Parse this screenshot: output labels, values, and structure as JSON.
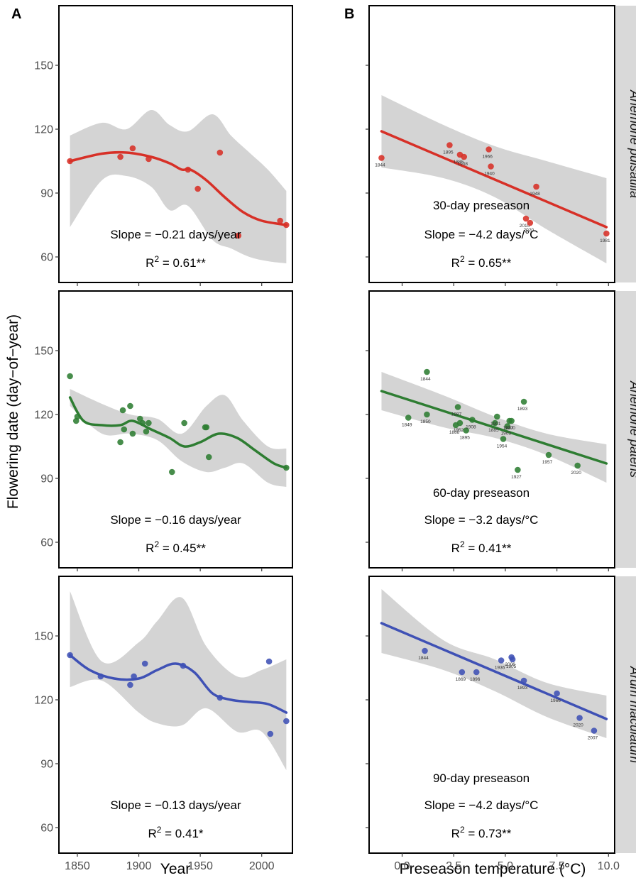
{
  "figure": {
    "panel_letters": [
      "A",
      "B"
    ],
    "y_title": "Flowering date (day−of−year)",
    "x_title_left": "Year",
    "x_title_right": "Preseason temperature (°C)",
    "strips": [
      "Anemone pulsatilla",
      "Anemone patens",
      "Arum maculatum"
    ]
  },
  "chart_data": [
    {
      "type": "scatter",
      "panel": "A",
      "row": 0,
      "species": "Anemone pulsatilla",
      "xlabel": "Year",
      "ylabel": "Flowering date (day−of−year)",
      "xlim": [
        1835,
        2025
      ],
      "ylim": [
        48,
        178
      ],
      "xticks": [
        1850,
        1900,
        1950,
        2000
      ],
      "yticks": [
        60,
        90,
        120,
        150
      ],
      "color": "#d73027",
      "points": [
        [
          1844,
          105
        ],
        [
          1885,
          107
        ],
        [
          1895,
          111
        ],
        [
          1908,
          106
        ],
        [
          1940,
          101
        ],
        [
          1948,
          92
        ],
        [
          1966,
          109
        ],
        [
          1981,
          70
        ],
        [
          2015,
          77
        ],
        [
          2020,
          75
        ]
      ],
      "trend": [
        [
          1844,
          105
        ],
        [
          1870,
          108.5
        ],
        [
          1890,
          109
        ],
        [
          1910,
          107
        ],
        [
          1925,
          104
        ],
        [
          1935,
          101
        ],
        [
          1942,
          101
        ],
        [
          1955,
          96
        ],
        [
          1970,
          88
        ],
        [
          1985,
          81
        ],
        [
          2000,
          77
        ],
        [
          2020,
          75
        ]
      ],
      "band_upper": [
        [
          1844,
          117
        ],
        [
          1870,
          123
        ],
        [
          1890,
          120
        ],
        [
          1910,
          129
        ],
        [
          1925,
          122
        ],
        [
          1940,
          119
        ],
        [
          1960,
          127
        ],
        [
          1975,
          117
        ],
        [
          1990,
          109
        ],
        [
          2005,
          101
        ],
        [
          2020,
          91
        ]
      ],
      "band_lower": [
        [
          1844,
          74
        ],
        [
          1870,
          96
        ],
        [
          1890,
          98
        ],
        [
          1910,
          93
        ],
        [
          1925,
          82
        ],
        [
          1940,
          84
        ],
        [
          1960,
          68
        ],
        [
          1975,
          64
        ],
        [
          1990,
          60
        ],
        [
          2005,
          58
        ],
        [
          2020,
          57
        ]
      ],
      "annotations": [
        "Slope = −0.21 days/year"
      ],
      "r2": "0.61**"
    },
    {
      "type": "scatter",
      "panel": "B",
      "row": 0,
      "species": "Anemone pulsatilla",
      "xlabel": "Preseason temperature (°C)",
      "ylabel": "",
      "xlim": [
        -1.6,
        10.3
      ],
      "ylim": [
        48,
        178
      ],
      "xticks": [
        0.0,
        2.5,
        5.0,
        7.5,
        10.0
      ],
      "yticks": [
        60,
        90,
        120,
        150
      ],
      "color": "#d73027",
      "points": [
        [
          -1.0,
          106.5,
          "1844"
        ],
        [
          2.3,
          112.5,
          "1895"
        ],
        [
          2.8,
          108,
          "1885"
        ],
        [
          3.0,
          107,
          "1908"
        ],
        [
          4.2,
          110.5,
          "1966"
        ],
        [
          4.3,
          102.5,
          "1940"
        ],
        [
          6.5,
          93,
          "1948"
        ],
        [
          6.0,
          78,
          "2015"
        ],
        [
          6.2,
          76,
          "2020"
        ],
        [
          9.9,
          71,
          "1981"
        ]
      ],
      "trend": [
        [
          -1.0,
          119
        ],
        [
          9.9,
          74
        ]
      ],
      "band_upper": [
        [
          -1.0,
          136
        ],
        [
          2.0,
          122
        ],
        [
          4.5,
          112
        ],
        [
          7.0,
          105
        ],
        [
          9.9,
          97
        ]
      ],
      "band_lower": [
        [
          -1.0,
          102
        ],
        [
          2.0,
          97
        ],
        [
          4.5,
          88
        ],
        [
          7.0,
          73
        ],
        [
          9.9,
          57
        ]
      ],
      "annotations": [
        "30-day preseason",
        "Slope = −4.2 days/°C"
      ],
      "r2": "0.65**"
    },
    {
      "type": "scatter",
      "panel": "A",
      "row": 1,
      "species": "Anemone patens",
      "xlabel": "Year",
      "ylabel": "Flowering date (day−of−year)",
      "xlim": [
        1835,
        2025
      ],
      "ylim": [
        48,
        178
      ],
      "xticks": [
        1850,
        1900,
        1950,
        2000
      ],
      "yticks": [
        60,
        90,
        120,
        150
      ],
      "color": "#2e7d32",
      "points": [
        [
          1844,
          138
        ],
        [
          1849,
          117
        ],
        [
          1850,
          119
        ],
        [
          1885,
          107
        ],
        [
          1887,
          122
        ],
        [
          1888,
          113
        ],
        [
          1893,
          124
        ],
        [
          1895,
          111
        ],
        [
          1901,
          118
        ],
        [
          1903,
          116
        ],
        [
          1906,
          112
        ],
        [
          1908,
          116
        ],
        [
          1927,
          93
        ],
        [
          1937,
          116
        ],
        [
          1954,
          114
        ],
        [
          1955,
          114
        ],
        [
          1957,
          100
        ],
        [
          2020,
          95
        ]
      ],
      "trend": [
        [
          1844,
          128
        ],
        [
          1855,
          117
        ],
        [
          1870,
          115
        ],
        [
          1885,
          115
        ],
        [
          1895,
          117
        ],
        [
          1910,
          113
        ],
        [
          1925,
          109
        ],
        [
          1937,
          105
        ],
        [
          1950,
          107
        ],
        [
          1965,
          111
        ],
        [
          1980,
          109
        ],
        [
          1995,
          103
        ],
        [
          2010,
          97
        ],
        [
          2020,
          95
        ]
      ],
      "band_upper": [
        [
          1844,
          132
        ],
        [
          1870,
          125
        ],
        [
          1893,
          120
        ],
        [
          1915,
          118
        ],
        [
          1935,
          111
        ],
        [
          1955,
          124
        ],
        [
          1970,
          129
        ],
        [
          1985,
          117
        ],
        [
          2005,
          105
        ],
        [
          2020,
          104
        ]
      ],
      "band_lower": [
        [
          1844,
          124
        ],
        [
          1870,
          111
        ],
        [
          1893,
          111
        ],
        [
          1915,
          108
        ],
        [
          1935,
          98
        ],
        [
          1955,
          93
        ],
        [
          1970,
          95
        ],
        [
          1985,
          97
        ],
        [
          2005,
          88
        ],
        [
          2020,
          86
        ]
      ],
      "annotations": [
        "Slope = −0.16 days/year"
      ],
      "r2": "0.45**"
    },
    {
      "type": "scatter",
      "panel": "B",
      "row": 1,
      "species": "Anemone patens",
      "xlabel": "Preseason temperature (°C)",
      "ylabel": "",
      "xlim": [
        -1.6,
        10.3
      ],
      "ylim": [
        48,
        178
      ],
      "xticks": [
        0.0,
        2.5,
        5.0,
        7.5,
        10.0
      ],
      "yticks": [
        60,
        90,
        120,
        150
      ],
      "color": "#2e7d32",
      "points": [
        [
          1.2,
          140,
          "1844"
        ],
        [
          0.3,
          118.5,
          "1849"
        ],
        [
          1.2,
          120,
          "1850"
        ],
        [
          2.6,
          115,
          "1888"
        ],
        [
          2.7,
          123.5,
          "1887"
        ],
        [
          2.8,
          116,
          "1952"
        ],
        [
          3.1,
          112.5,
          "1895"
        ],
        [
          3.4,
          117.5,
          "1908"
        ],
        [
          4.5,
          116,
          "1885"
        ],
        [
          4.6,
          119,
          "1901"
        ],
        [
          4.9,
          108.5,
          "1954"
        ],
        [
          5.1,
          114.5,
          "1903"
        ],
        [
          5.2,
          117,
          "1937"
        ],
        [
          5.3,
          117,
          "1900"
        ],
        [
          5.6,
          94,
          "1927"
        ],
        [
          5.9,
          126,
          "1893"
        ],
        [
          7.1,
          101,
          "1957"
        ],
        [
          8.5,
          96,
          "2020"
        ]
      ],
      "trend": [
        [
          -1.0,
          131
        ],
        [
          9.9,
          97
        ]
      ],
      "band_upper": [
        [
          -1.0,
          140
        ],
        [
          2.0,
          129
        ],
        [
          4.5,
          119
        ],
        [
          7.0,
          111
        ],
        [
          9.9,
          106
        ]
      ],
      "band_lower": [
        [
          -1.0,
          122
        ],
        [
          2.0,
          114
        ],
        [
          4.5,
          109
        ],
        [
          7.0,
          101
        ],
        [
          9.9,
          88
        ]
      ],
      "annotations": [
        "60-day preseason",
        "Slope = −3.2 days/°C"
      ],
      "r2": "0.41**"
    },
    {
      "type": "scatter",
      "panel": "A",
      "row": 2,
      "species": "Arum maculatum",
      "xlabel": "Year",
      "ylabel": "Flowering date (day−of−year)",
      "xlim": [
        1835,
        2025
      ],
      "ylim": [
        48,
        178
      ],
      "xticks": [
        1850,
        1900,
        1950,
        2000
      ],
      "yticks": [
        60,
        90,
        120,
        150
      ],
      "color": "#3f51b5",
      "points": [
        [
          1844,
          141
        ],
        [
          1869,
          131
        ],
        [
          1893,
          127
        ],
        [
          1896,
          131
        ],
        [
          1905,
          137
        ],
        [
          1936,
          136
        ],
        [
          1966,
          121
        ],
        [
          2006,
          138
        ],
        [
          2007,
          104
        ],
        [
          2020,
          110
        ]
      ],
      "trend": [
        [
          1844,
          141
        ],
        [
          1860,
          134
        ],
        [
          1880,
          130
        ],
        [
          1900,
          130
        ],
        [
          1915,
          134
        ],
        [
          1930,
          137
        ],
        [
          1945,
          133
        ],
        [
          1960,
          123
        ],
        [
          1975,
          120
        ],
        [
          1990,
          119
        ],
        [
          2005,
          118
        ],
        [
          2020,
          114
        ]
      ],
      "band_upper": [
        [
          1844,
          171
        ],
        [
          1870,
          138
        ],
        [
          1900,
          147
        ],
        [
          1915,
          157
        ],
        [
          1935,
          168
        ],
        [
          1955,
          145
        ],
        [
          1980,
          131
        ],
        [
          2000,
          134
        ],
        [
          2020,
          139
        ]
      ],
      "band_lower": [
        [
          1844,
          126
        ],
        [
          1870,
          129
        ],
        [
          1900,
          114
        ],
        [
          1915,
          109
        ],
        [
          1935,
          108
        ],
        [
          1955,
          116
        ],
        [
          1980,
          105
        ],
        [
          2000,
          105
        ],
        [
          2020,
          87
        ]
      ],
      "annotations": [
        "Slope = −0.13 days/year"
      ],
      "r2": "0.41*"
    },
    {
      "type": "scatter",
      "panel": "B",
      "row": 2,
      "species": "Arum maculatum",
      "xlabel": "Preseason temperature (°C)",
      "ylabel": "",
      "xlim": [
        -1.6,
        10.3
      ],
      "ylim": [
        48,
        178
      ],
      "xticks": [
        0.0,
        2.5,
        5.0,
        7.5,
        10.0
      ],
      "yticks": [
        60,
        90,
        120,
        150
      ],
      "color": "#3f51b5",
      "points": [
        [
          1.1,
          143,
          "1844"
        ],
        [
          2.9,
          133,
          "1869"
        ],
        [
          3.6,
          133,
          "1896"
        ],
        [
          4.8,
          138.5,
          "1936"
        ],
        [
          5.3,
          140,
          "2006"
        ],
        [
          5.35,
          139,
          "1905"
        ],
        [
          5.9,
          129,
          "1893"
        ],
        [
          7.5,
          123,
          "1966"
        ],
        [
          8.6,
          111.5,
          "2020"
        ],
        [
          9.3,
          105.5,
          "2007"
        ]
      ],
      "trend": [
        [
          -1.0,
          156
        ],
        [
          9.9,
          111
        ]
      ],
      "band_upper": [
        [
          -1.0,
          172
        ],
        [
          2.0,
          148
        ],
        [
          4.5,
          139
        ],
        [
          7.0,
          128
        ],
        [
          9.9,
          122
        ]
      ],
      "band_lower": [
        [
          -1.0,
          142
        ],
        [
          2.0,
          134
        ],
        [
          4.5,
          124
        ],
        [
          7.0,
          112
        ],
        [
          9.9,
          102
        ]
      ],
      "annotations": [
        "90-day preseason",
        "Slope = −4.2 days/°C"
      ],
      "r2": "0.73**"
    }
  ]
}
